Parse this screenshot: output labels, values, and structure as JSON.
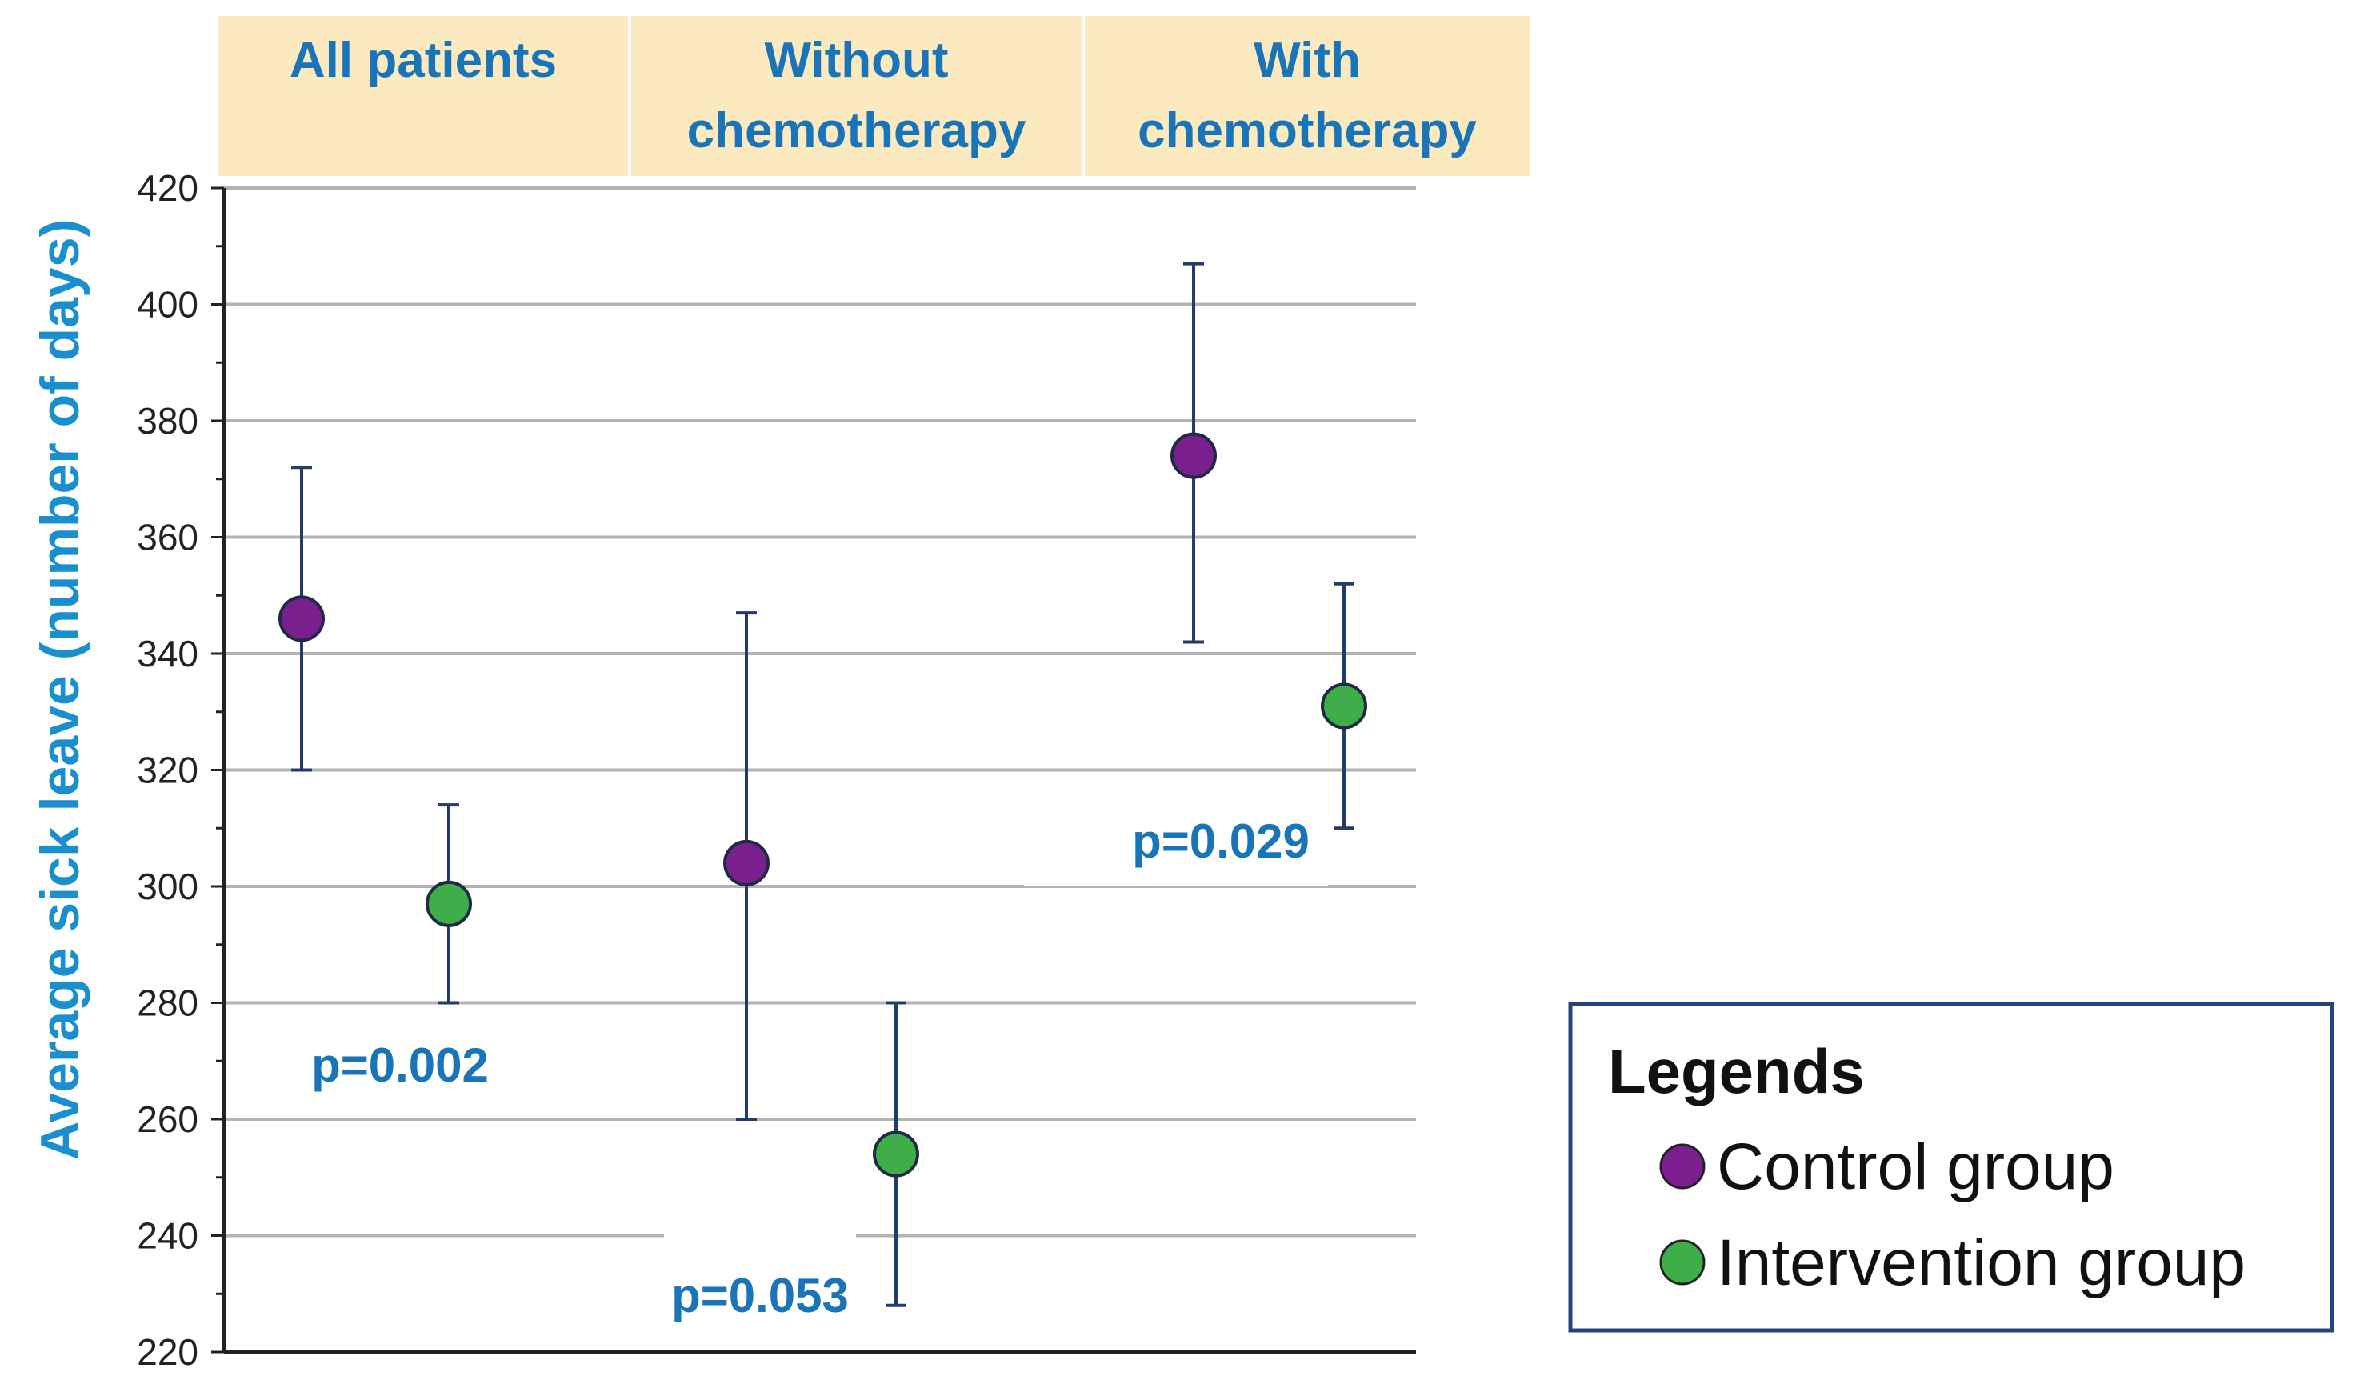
{
  "chart_data": {
    "type": "scatter",
    "subtype": "error-bar dot plot",
    "ylabel": "Average sick leave (number of days)",
    "ylim": [
      220,
      420
    ],
    "yticks": [
      220,
      240,
      260,
      280,
      300,
      320,
      340,
      360,
      380,
      400,
      420
    ],
    "ytick_labels": [
      "220",
      "240",
      "260",
      "280",
      "300",
      "320",
      "340",
      "360",
      "380",
      "400",
      "420"
    ],
    "grid": true,
    "categories": [
      {
        "line1": "All patients",
        "line2": ""
      },
      {
        "line1": "Without",
        "line2": "chemotherapy"
      },
      {
        "line1": "With",
        "line2": "chemotherapy"
      }
    ],
    "series": [
      {
        "name": "Control group",
        "color": "#7b1f8f",
        "points": [
          {
            "category": 0,
            "mean": 346,
            "lower": 320,
            "upper": 372
          },
          {
            "category": 1,
            "mean": 304,
            "lower": 260,
            "upper": 347
          },
          {
            "category": 2,
            "mean": 374,
            "lower": 342,
            "upper": 407
          }
        ]
      },
      {
        "name": "Intervention group",
        "color": "#3eae49",
        "points": [
          {
            "category": 0,
            "mean": 297,
            "lower": 280,
            "upper": 314
          },
          {
            "category": 1,
            "mean": 254,
            "lower": 228,
            "upper": 280
          },
          {
            "category": 2,
            "mean": 331,
            "lower": 310,
            "upper": 352
          }
        ]
      }
    ],
    "annotations": [
      "p=0.002",
      "p=0.053",
      "p=0.029"
    ],
    "legend": {
      "title": "Legends",
      "position": "bottom-right",
      "items": [
        "Control group",
        "Intervention group"
      ]
    },
    "colors": {
      "header_bg": "#fbeac0",
      "header_text": "#1a74b8",
      "axis_label": "#1a8fd0",
      "annotation": "#1a74b8",
      "error_bar": "#243b6b",
      "gridline": "#b3b3b3",
      "legend_border": "#24437a"
    }
  }
}
